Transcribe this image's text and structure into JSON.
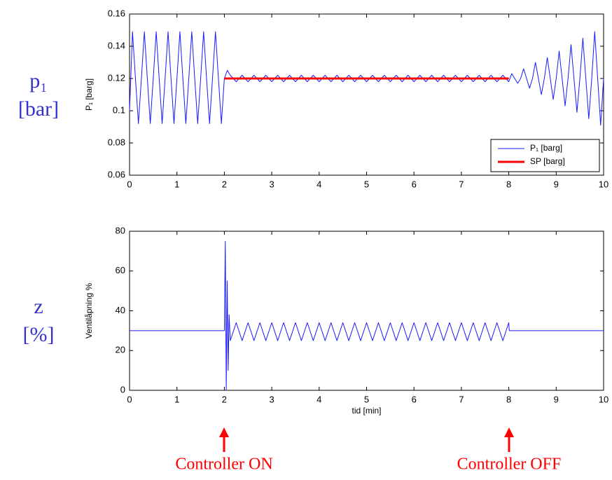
{
  "row_labels": [
    {
      "symbol": "p₁",
      "unit": "[bar]"
    },
    {
      "symbol": "z",
      "unit": "[%]"
    }
  ],
  "annotations": [
    "Controller ON",
    "Controller OFF"
  ],
  "chart_data": [
    {
      "type": "line",
      "ylabel": "P₁ [barg]",
      "legend": "lower right",
      "xlim": [
        0,
        10
      ],
      "xticks": [
        0,
        1,
        2,
        3,
        4,
        5,
        6,
        7,
        8,
        9,
        10
      ],
      "ylim": [
        0.06,
        0.16
      ],
      "yticks": [
        0.06,
        0.08,
        0.1,
        0.12,
        0.14,
        0.16
      ],
      "series": [
        {
          "name": "P₁ [barg]",
          "color": "#1a1aff",
          "width": 1,
          "x": [
            0,
            0.0625,
            0.125,
            0.1875,
            0.25,
            0.3125,
            0.375,
            0.4375,
            0.5,
            0.5625,
            0.625,
            0.6875,
            0.75,
            0.8125,
            0.875,
            0.9375,
            1,
            1.0625,
            1.125,
            1.1875,
            1.25,
            1.3125,
            1.375,
            1.4375,
            1.5,
            1.5625,
            1.625,
            1.6875,
            1.75,
            1.8125,
            1.875,
            1.9375,
            2,
            2.0625,
            2.125,
            2.25,
            2.375,
            2.5,
            2.625,
            2.75,
            2.875,
            3,
            3.125,
            3.25,
            3.375,
            3.5,
            3.625,
            3.75,
            3.875,
            4,
            4.125,
            4.25,
            4.375,
            4.5,
            4.625,
            4.75,
            4.875,
            5,
            5.125,
            5.25,
            5.375,
            5.5,
            5.625,
            5.75,
            5.875,
            6,
            6.125,
            6.25,
            6.375,
            6.5,
            6.625,
            6.75,
            6.875,
            7,
            7.125,
            7.25,
            7.375,
            7.5,
            7.625,
            7.75,
            7.875,
            8,
            8.0625,
            8.125,
            8.1875,
            8.25,
            8.3125,
            8.375,
            8.4375,
            8.5,
            8.5625,
            8.625,
            8.6875,
            8.75,
            8.8125,
            8.875,
            8.9375,
            9,
            9.0625,
            9.125,
            9.1875,
            9.25,
            9.3125,
            9.375,
            9.4375,
            9.5,
            9.5625,
            9.625,
            9.6875,
            9.75,
            9.8125,
            9.875,
            9.9375,
            10
          ],
          "values": [
            0.1,
            0.149,
            0.12,
            0.092,
            0.12,
            0.149,
            0.12,
            0.092,
            0.12,
            0.149,
            0.12,
            0.092,
            0.12,
            0.149,
            0.12,
            0.092,
            0.12,
            0.149,
            0.12,
            0.092,
            0.12,
            0.149,
            0.12,
            0.092,
            0.12,
            0.149,
            0.12,
            0.092,
            0.12,
            0.149,
            0.12,
            0.092,
            0.12,
            0.125,
            0.122,
            0.118,
            0.122,
            0.118,
            0.122,
            0.118,
            0.122,
            0.118,
            0.122,
            0.118,
            0.122,
            0.118,
            0.122,
            0.118,
            0.122,
            0.118,
            0.122,
            0.118,
            0.122,
            0.118,
            0.122,
            0.118,
            0.122,
            0.118,
            0.122,
            0.118,
            0.122,
            0.118,
            0.122,
            0.118,
            0.122,
            0.118,
            0.122,
            0.118,
            0.122,
            0.118,
            0.122,
            0.118,
            0.122,
            0.118,
            0.122,
            0.118,
            0.122,
            0.118,
            0.122,
            0.118,
            0.122,
            0.118,
            0.123,
            0.12,
            0.117,
            0.12,
            0.126,
            0.12,
            0.114,
            0.12,
            0.13,
            0.12,
            0.11,
            0.12,
            0.133,
            0.12,
            0.107,
            0.12,
            0.137,
            0.12,
            0.103,
            0.12,
            0.141,
            0.12,
            0.099,
            0.12,
            0.145,
            0.12,
            0.095,
            0.12,
            0.149,
            0.12,
            0.091,
            0.12
          ]
        },
        {
          "name": "SP [barg]",
          "color": "#ff0000",
          "width": 3,
          "x": [
            2,
            8
          ],
          "values": [
            0.12,
            0.12
          ]
        }
      ]
    },
    {
      "type": "line",
      "ylabel": "Ventilåpning %",
      "xlabel": "tid [min]",
      "xlim": [
        0,
        10
      ],
      "xticks": [
        0,
        1,
        2,
        3,
        4,
        5,
        6,
        7,
        8,
        9,
        10
      ],
      "ylim": [
        0,
        80
      ],
      "yticks": [
        0,
        20,
        40,
        60,
        80
      ],
      "series": [
        {
          "color": "#1a1aff",
          "width": 1,
          "x": [
            0,
            2,
            2.02,
            2.04,
            2.06,
            2.08,
            2.1,
            2.125,
            2.25,
            2.375,
            2.5,
            2.625,
            2.75,
            2.875,
            3,
            3.125,
            3.25,
            3.375,
            3.5,
            3.625,
            3.75,
            3.875,
            4,
            4.125,
            4.25,
            4.375,
            4.5,
            4.625,
            4.75,
            4.875,
            5,
            5.125,
            5.25,
            5.375,
            5.5,
            5.625,
            5.75,
            5.875,
            6,
            6.125,
            6.25,
            6.375,
            6.5,
            6.625,
            6.75,
            6.875,
            7,
            7.125,
            7.25,
            7.375,
            7.5,
            7.625,
            7.75,
            7.875,
            8,
            8.01,
            10
          ],
          "values": [
            30,
            30,
            75,
            0,
            55,
            10,
            38,
            25,
            34,
            25,
            34,
            25,
            34,
            25,
            34,
            25,
            34,
            25,
            34,
            25,
            34,
            25,
            34,
            25,
            34,
            25,
            34,
            25,
            34,
            25,
            34,
            25,
            34,
            25,
            34,
            25,
            34,
            25,
            34,
            25,
            34,
            25,
            34,
            25,
            34,
            25,
            34,
            25,
            34,
            25,
            34,
            25,
            34,
            25,
            34,
            30,
            30
          ]
        }
      ]
    }
  ]
}
